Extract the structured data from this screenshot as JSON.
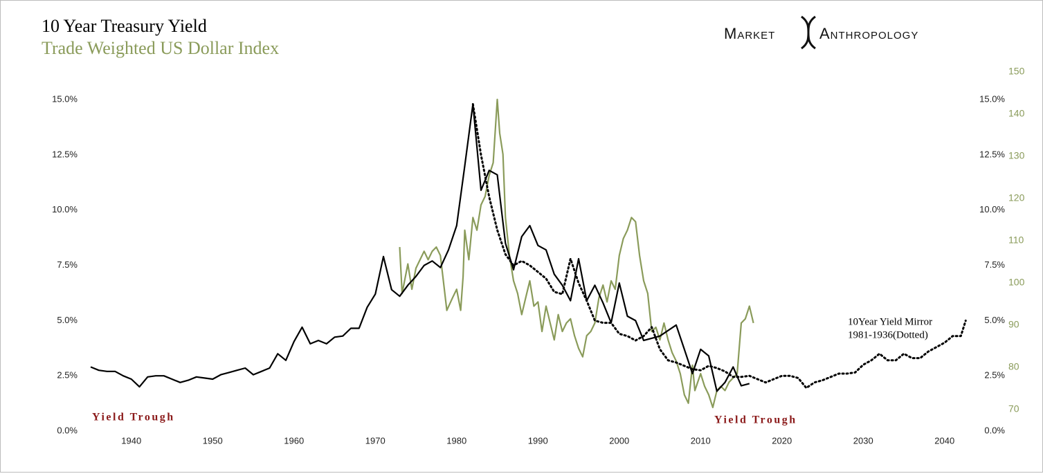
{
  "chart_data": {
    "type": "line",
    "title": "10 Year Treasury Yield",
    "subtitle": "Trade Weighted US Dollar Index",
    "brand": [
      "Market",
      "Anthropology"
    ],
    "annotations": [
      "Yield Trough",
      "Yield Trough",
      "10Year Yield Mirror",
      "1981-1936(Dotted)"
    ],
    "xlim": [
      1935,
      2043
    ],
    "xticks": [
      1940,
      1950,
      1960,
      1970,
      1980,
      1990,
      2000,
      2010,
      2020,
      2030,
      2040
    ],
    "ylim": [
      0,
      16.35
    ],
    "yticks": [
      {
        "value": 0,
        "label": "0.0%"
      },
      {
        "value": 2.5,
        "label": "2.5%"
      },
      {
        "value": 5,
        "label": "5.0%"
      },
      {
        "value": 7.5,
        "label": "7.5%"
      },
      {
        "value": 10,
        "label": "10.0%"
      },
      {
        "value": 12.5,
        "label": "12.5%"
      },
      {
        "value": 15,
        "label": "15.0%"
      }
    ],
    "y2lim": [
      64.4,
      150
    ],
    "y2ticks": [
      70,
      80,
      90,
      100,
      110,
      120,
      130,
      140,
      150
    ],
    "y2_color": "#8a9b5a",
    "grid": false,
    "series": [
      {
        "color": "#000000",
        "dash": "solid",
        "axis": "y",
        "x": [
          1935,
          1936,
          1937,
          1938,
          1939,
          1940,
          1941,
          1942,
          1943,
          1944,
          1945,
          1946,
          1947,
          1948,
          1949,
          1950,
          1951,
          1952,
          1953,
          1954,
          1955,
          1956,
          1957,
          1958,
          1959,
          1960,
          1961,
          1962,
          1963,
          1964,
          1965,
          1966,
          1967,
          1968,
          1969,
          1970,
          1971,
          1972,
          1973,
          1974,
          1975,
          1976,
          1977,
          1978,
          1979,
          1980,
          1981,
          1982,
          1983,
          1984,
          1985,
          1986,
          1987,
          1988,
          1989,
          1990,
          1991,
          1992,
          1993,
          1994,
          1995,
          1996,
          1997,
          1998,
          1999,
          2000,
          2001,
          2002,
          2003,
          2004,
          2005,
          2006,
          2007,
          2008,
          2009,
          2010,
          2011,
          2012,
          2013,
          2014,
          2015,
          2016
        ],
        "values": [
          2.9,
          2.75,
          2.7,
          2.7,
          2.5,
          2.35,
          2.0,
          2.45,
          2.5,
          2.5,
          2.35,
          2.2,
          2.3,
          2.45,
          2.4,
          2.35,
          2.55,
          2.65,
          2.75,
          2.85,
          2.55,
          2.7,
          2.85,
          3.5,
          3.2,
          4.05,
          4.7,
          3.95,
          4.1,
          3.95,
          4.25,
          4.3,
          4.65,
          4.65,
          5.6,
          6.2,
          7.9,
          6.4,
          6.1,
          6.6,
          7.0,
          7.5,
          7.7,
          7.4,
          8.2,
          9.3,
          12.0,
          14.8,
          10.9,
          11.8,
          11.6,
          8.5,
          7.3,
          8.8,
          9.3,
          8.4,
          8.2,
          7.1,
          6.6,
          5.9,
          7.8,
          5.9,
          6.6,
          5.8,
          4.9,
          6.7,
          5.2,
          5.0,
          4.1,
          4.2,
          4.3,
          4.55,
          4.8,
          3.7,
          2.6,
          3.7,
          3.4,
          1.8,
          2.2,
          2.9,
          2.05,
          2.15
        ]
      },
      {
        "color": "#000000",
        "dash": "dotted",
        "axis": "y",
        "x": [
          1982,
          1983,
          1984,
          1985,
          1986,
          1987,
          1988,
          1989,
          1990,
          1991,
          1992,
          1993,
          1994,
          1995,
          1996,
          1997,
          1998,
          1999,
          2000,
          2001,
          2002,
          2003,
          2004,
          2005,
          2006,
          2007,
          2008,
          2009,
          2010,
          2011,
          2012,
          2013,
          2014,
          2015,
          2016,
          2017,
          2018,
          2019,
          2020,
          2021,
          2022,
          2023,
          2024,
          2025,
          2026,
          2027,
          2028,
          2029,
          2030,
          2031,
          2032,
          2033,
          2034,
          2035,
          2036,
          2037,
          2038,
          2039,
          2040,
          2041,
          2042,
          2042.6
        ],
        "values": [
          14.8,
          12.5,
          10.6,
          9.1,
          8.0,
          7.5,
          7.7,
          7.5,
          7.2,
          6.9,
          6.3,
          6.2,
          7.8,
          6.7,
          5.9,
          5.0,
          4.9,
          4.9,
          4.4,
          4.3,
          4.1,
          4.3,
          4.7,
          3.7,
          3.2,
          3.1,
          2.95,
          2.8,
          2.75,
          2.95,
          2.85,
          2.7,
          2.45,
          2.45,
          2.5,
          2.35,
          2.2,
          2.35,
          2.5,
          2.5,
          2.4,
          1.95,
          2.2,
          2.3,
          2.45,
          2.6,
          2.6,
          2.65,
          3.0,
          3.2,
          3.5,
          3.2,
          3.2,
          3.5,
          3.3,
          3.3,
          3.6,
          3.8,
          4.0,
          4.3,
          4.3,
          5.0
        ]
      },
      {
        "color": "#8a9b5a",
        "dash": "solid",
        "axis": "y2",
        "x": [
          1973,
          1973.3,
          1974,
          1974.5,
          1975,
          1975.5,
          1976,
          1976.5,
          1977,
          1977.5,
          1978,
          1978.8,
          1979.5,
          1980,
          1980.5,
          1980.8,
          1981,
          1981.5,
          1982,
          1982.5,
          1983,
          1983.5,
          1984,
          1984.5,
          1985,
          1985.3,
          1985.7,
          1986,
          1986.5,
          1987,
          1987.5,
          1988,
          1988.5,
          1989,
          1989.5,
          1990,
          1990.5,
          1991,
          1991.5,
          1992,
          1992.5,
          1993,
          1993.5,
          1994,
          1994.5,
          1995,
          1995.5,
          1996,
          1996.5,
          1997,
          1997.5,
          1998,
          1998.5,
          1999,
          1999.5,
          2000,
          2000.5,
          2001,
          2001.5,
          2002,
          2002.5,
          2003,
          2003.5,
          2004,
          2004.5,
          2005,
          2005.5,
          2006,
          2006.5,
          2007,
          2007.5,
          2008,
          2008.5,
          2009,
          2009.3,
          2010,
          2010.5,
          2011,
          2011.5,
          2012,
          2012.5,
          2013,
          2013.5,
          2014,
          2014.5,
          2015,
          2015.5,
          2016,
          2016.5
        ],
        "values": [
          108,
          97,
          104,
          98,
          103,
          105,
          107,
          105,
          107,
          108,
          106,
          93,
          96,
          98,
          93,
          101,
          112,
          105,
          115,
          112,
          118,
          120,
          125,
          128,
          143,
          135,
          130,
          115,
          106,
          100,
          97,
          92,
          96,
          100,
          94,
          95,
          88,
          94,
          90,
          86,
          92,
          88,
          90,
          91,
          87,
          84,
          82,
          87,
          88,
          90,
          96,
          99,
          95,
          100,
          98,
          106,
          110,
          112,
          115,
          114,
          106,
          100,
          97,
          88,
          89,
          86,
          90,
          86,
          83,
          81,
          78,
          73,
          71,
          80,
          74,
          78,
          75,
          73,
          70,
          74,
          75,
          74,
          76,
          77,
          78,
          90,
          91,
          94,
          90
        ]
      }
    ]
  }
}
